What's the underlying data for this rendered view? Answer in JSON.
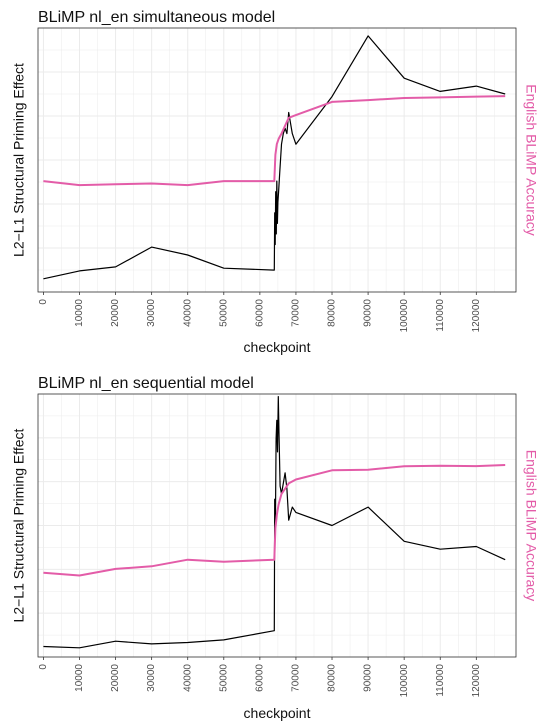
{
  "colors": {
    "priming_line": "#000000",
    "accuracy_line": "#e35ca8",
    "grid": "#ebebeb",
    "panel_border": "#333333"
  },
  "chart_data": [
    {
      "type": "line",
      "title": "BLiMP nl_en simultaneous model",
      "xlabel": "checkpoint",
      "ylabel": "L2−L1 Structural Priming Effect",
      "y2label": "English BLiMP Accuracy",
      "xlim": [
        -1500,
        131000
      ],
      "x_ticks": [
        0,
        10000,
        20000,
        30000,
        40000,
        50000,
        60000,
        70000,
        80000,
        90000,
        100000,
        110000,
        120000
      ],
      "x_tick_labels": [
        "0",
        "10000",
        "20000",
        "30000",
        "40000",
        "50000",
        "60000",
        "70000",
        "80000",
        "90000",
        "100000",
        "110000",
        "120000"
      ],
      "ylim": [
        0,
        1
      ],
      "grid": true,
      "series": [
        {
          "name": "L2−L1 Structural Priming Effect",
          "axis": "left",
          "color": "#000000",
          "x": [
            0,
            10000,
            20000,
            30000,
            40000,
            50000,
            64000,
            64100,
            64250,
            64400,
            64550,
            64700,
            64850,
            65000,
            65200,
            65500,
            66000,
            66500,
            67000,
            67500,
            68000,
            69000,
            70000,
            80000,
            90000,
            100000,
            110000,
            120000,
            128000
          ],
          "values": [
            0.05,
            0.08,
            0.095,
            0.17,
            0.14,
            0.09,
            0.083,
            0.3,
            0.18,
            0.38,
            0.22,
            0.42,
            0.26,
            0.34,
            0.38,
            0.45,
            0.56,
            0.6,
            0.62,
            0.6,
            0.68,
            0.6,
            0.56,
            0.74,
            0.97,
            0.81,
            0.76,
            0.78,
            0.75
          ]
        },
        {
          "name": "English BLiMP Accuracy",
          "axis": "right",
          "color": "#e35ca8",
          "x": [
            0,
            10000,
            20000,
            30000,
            40000,
            50000,
            64000,
            64300,
            64700,
            65200,
            66000,
            67000,
            68000,
            70000,
            80000,
            90000,
            100000,
            110000,
            120000,
            128000
          ],
          "values": [
            0.42,
            0.405,
            0.408,
            0.411,
            0.405,
            0.42,
            0.42,
            0.52,
            0.56,
            0.58,
            0.6,
            0.63,
            0.66,
            0.67,
            0.72,
            0.727,
            0.735,
            0.737,
            0.74,
            0.742
          ]
        }
      ]
    },
    {
      "type": "line",
      "title": "BLiMP nl_en sequential model",
      "xlabel": "checkpoint",
      "ylabel": "L2−L1 Structural Priming Effect",
      "y2label": "English BLiMP Accuracy",
      "xlim": [
        -1500,
        131000
      ],
      "x_ticks": [
        0,
        10000,
        20000,
        30000,
        40000,
        50000,
        60000,
        70000,
        80000,
        90000,
        100000,
        110000,
        120000
      ],
      "x_tick_labels": [
        "0",
        "10000",
        "20000",
        "30000",
        "40000",
        "50000",
        "60000",
        "70000",
        "80000",
        "90000",
        "100000",
        "110000",
        "120000"
      ],
      "ylim": [
        0,
        1
      ],
      "grid": true,
      "series": [
        {
          "name": "L2−L1 Structural Priming Effect",
          "axis": "left",
          "color": "#000000",
          "x": [
            0,
            10000,
            20000,
            30000,
            40000,
            50000,
            64000,
            64100,
            64300,
            64500,
            64700,
            64900,
            65100,
            65300,
            65600,
            66000,
            66500,
            67000,
            67500,
            68000,
            69000,
            70000,
            80000,
            90000,
            100000,
            110000,
            120000,
            128000
          ],
          "values": [
            0.04,
            0.035,
            0.06,
            0.05,
            0.055,
            0.065,
            0.1,
            0.6,
            0.5,
            0.83,
            0.9,
            0.78,
            0.99,
            0.85,
            0.65,
            0.62,
            0.66,
            0.7,
            0.64,
            0.52,
            0.57,
            0.55,
            0.5,
            0.57,
            0.44,
            0.41,
            0.42,
            0.37
          ]
        },
        {
          "name": "English BLiMP Accuracy",
          "axis": "right",
          "color": "#e35ca8",
          "x": [
            0,
            10000,
            20000,
            30000,
            40000,
            50000,
            64000,
            64300,
            64700,
            65200,
            66000,
            67000,
            68000,
            70000,
            80000,
            90000,
            100000,
            110000,
            120000,
            128000
          ],
          "values": [
            0.32,
            0.31,
            0.335,
            0.345,
            0.37,
            0.362,
            0.37,
            0.49,
            0.54,
            0.58,
            0.62,
            0.64,
            0.66,
            0.675,
            0.71,
            0.712,
            0.725,
            0.727,
            0.726,
            0.73
          ]
        }
      ]
    }
  ]
}
